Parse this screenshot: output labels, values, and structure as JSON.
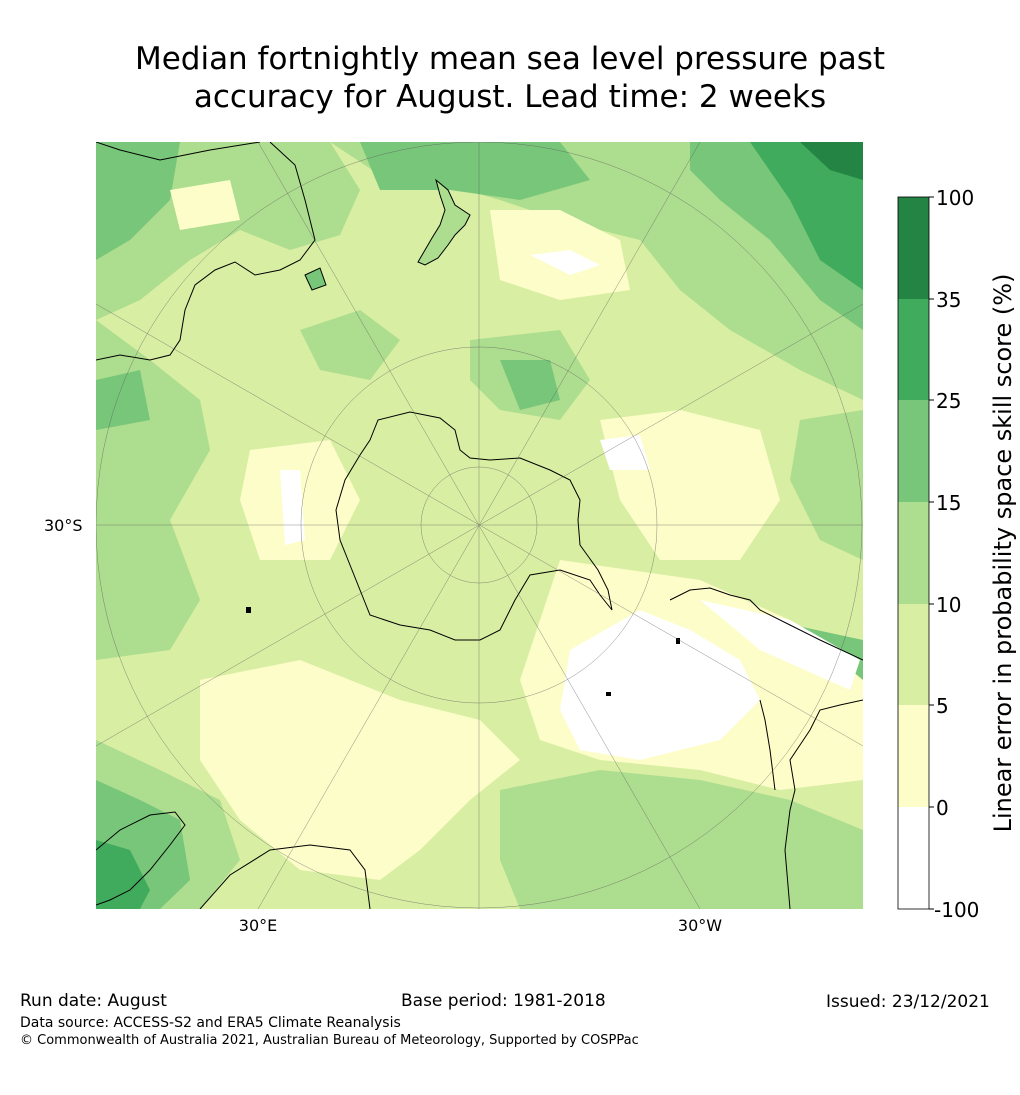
{
  "title": {
    "line1": "Median fortnightly mean sea level pressure past",
    "line2": "accuracy for August. Lead time: 2 weeks"
  },
  "map": {
    "lat_label": "30°S",
    "lon_labels": [
      "30°E",
      "30°W"
    ]
  },
  "colorbar": {
    "label": "Linear error in probability space skill score (%)",
    "ticks": [
      "100",
      "35",
      "25",
      "15",
      "10",
      "5",
      "0",
      "-100"
    ],
    "bins": [
      {
        "range": "-100 to 0",
        "color": "#ffffff"
      },
      {
        "range": "0 to 5",
        "color": "#fdfdc9"
      },
      {
        "range": "5 to 10",
        "color": "#d8eea3"
      },
      {
        "range": "10 to 15",
        "color": "#addd8e"
      },
      {
        "range": "15 to 25",
        "color": "#78c679"
      },
      {
        "range": "25 to 35",
        "color": "#41ab5d"
      },
      {
        "range": "35 to 100",
        "color": "#238443"
      }
    ]
  },
  "footer": {
    "run_date": "Run date: August",
    "base_period": "Base period: 1981-2018",
    "issued": "Issued: 23/12/2021",
    "data_source": "Data source: ACCESS-S2 and ERA5 Climate Reanalysis",
    "copyright": "© Commonwealth of Australia 2021, Australian Bureau of Meteorology, Supported by COSPPac"
  }
}
